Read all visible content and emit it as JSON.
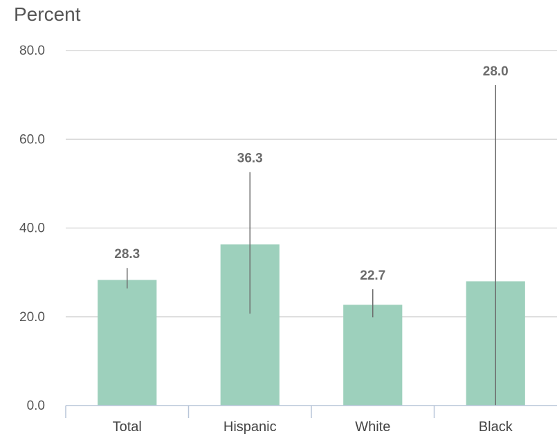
{
  "chart_data": {
    "type": "bar",
    "ylabel": "Percent",
    "ylim": [
      0,
      80
    ],
    "yticks": [
      "0.0",
      "20.0",
      "40.0",
      "60.0",
      "80.0"
    ],
    "categories": [
      "Total",
      "Hispanic",
      "White",
      "Black"
    ],
    "values": [
      28.3,
      36.3,
      22.7,
      28.0
    ],
    "data_labels": [
      "28.3",
      "36.3",
      "22.7",
      "28.0"
    ],
    "error_bars": [
      [
        26.4,
        31.0
      ],
      [
        20.7,
        52.6
      ],
      [
        19.9,
        26.2
      ],
      [
        0.0,
        72.2
      ]
    ],
    "grid": true,
    "bar_color": "#9dd0bc",
    "error_bar_color": "#6b6b6b",
    "gridline_color": "#d9d9d9",
    "axis_color": "#b8c6d9"
  }
}
